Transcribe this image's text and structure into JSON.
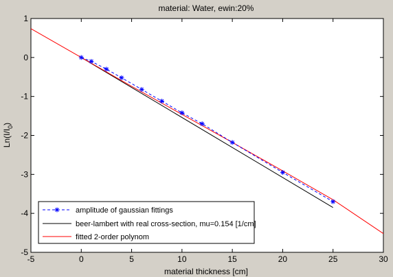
{
  "chart_data": {
    "type": "line",
    "title": "material: Water, ewin:20%",
    "xlabel": "material thickness [cm]",
    "ylabel_main": "Ln(I/I",
    "ylabel_sub": "0",
    "ylabel_tail": ")",
    "xlim": [
      -5,
      30
    ],
    "ylim": [
      -5,
      1
    ],
    "xticks": [
      -5,
      0,
      5,
      10,
      15,
      20,
      25,
      30
    ],
    "yticks": [
      -5,
      -4,
      -3,
      -2,
      -1,
      0,
      1
    ],
    "xtick_labels": [
      "-5",
      "0",
      "5",
      "10",
      "15",
      "20",
      "25",
      "30"
    ],
    "ytick_labels": [
      "-5",
      "-4",
      "-3",
      "-2",
      "-1",
      "0",
      "1"
    ],
    "grid": false,
    "legend_position": "bottom-left",
    "series": [
      {
        "name": "amplitude of gaussian fittings",
        "color": "#0000ff",
        "style": "dashed-star",
        "x": [
          0,
          1,
          2.5,
          4,
          6,
          8,
          10,
          12,
          15,
          20,
          25
        ],
        "y": [
          0,
          -0.1,
          -0.3,
          -0.52,
          -0.82,
          -1.12,
          -1.42,
          -1.7,
          -2.18,
          -2.95,
          -3.7
        ]
      },
      {
        "name": "beer-lambert with real cross-section, mu=0.154 [1/cm]",
        "color": "#000000",
        "style": "solid",
        "x": [
          0,
          25
        ],
        "y": [
          0,
          -3.85
        ]
      },
      {
        "name": "fitted 2-order polynom",
        "color": "#ff0000",
        "style": "solid",
        "x": [
          -5,
          0,
          5,
          10,
          15,
          20,
          25,
          30
        ],
        "y": [
          0.74,
          0,
          -0.74,
          -1.46,
          -2.18,
          -2.91,
          -3.65,
          -4.52
        ]
      }
    ]
  }
}
